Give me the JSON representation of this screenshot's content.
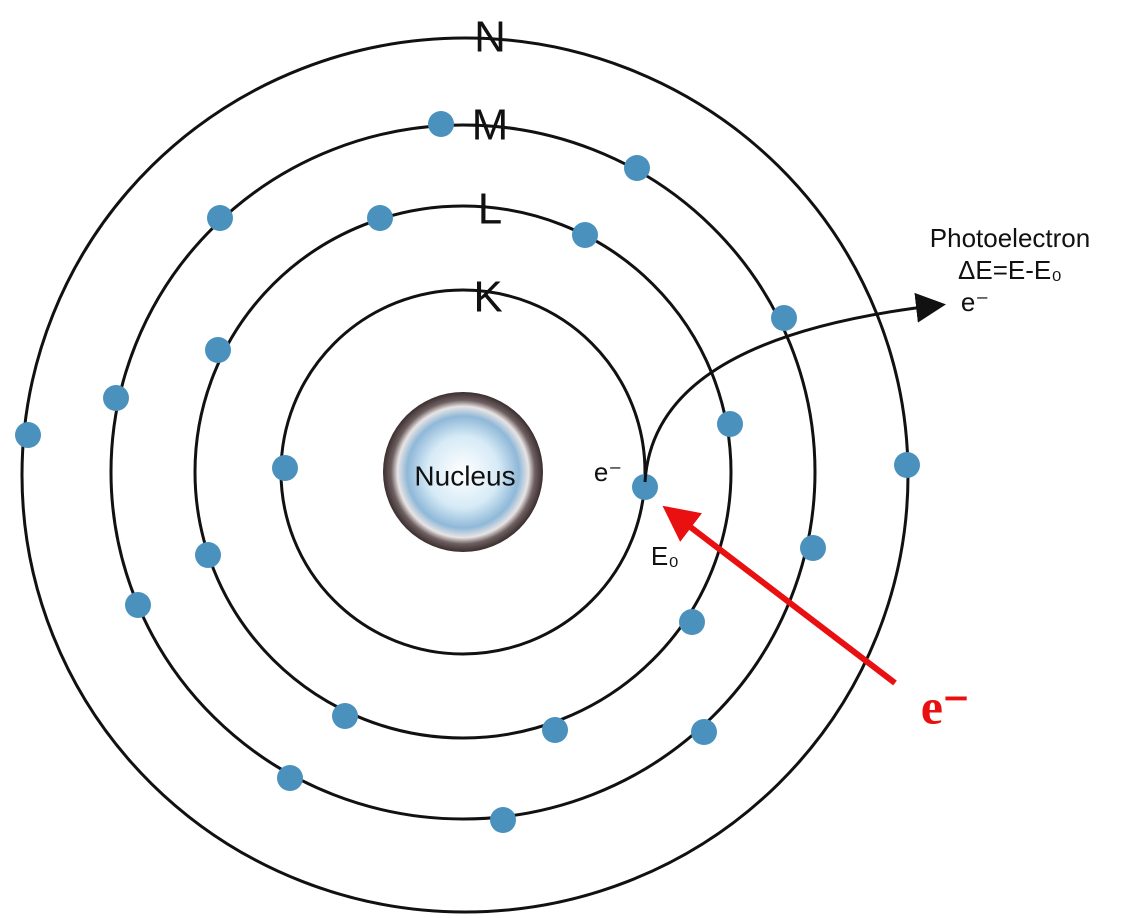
{
  "shells": [
    {
      "label": "K"
    },
    {
      "label": "L"
    },
    {
      "label": "M"
    },
    {
      "label": "N"
    }
  ],
  "nucleus": {
    "label": "Nucleus"
  },
  "bound_electron": {
    "label": "e⁻",
    "energy_label": "E₀"
  },
  "photoelectron": {
    "title": "Photoelectron",
    "energy": "ΔE=E-E₀",
    "label": "e⁻"
  },
  "incident_electron": {
    "label": "e⁻"
  }
}
